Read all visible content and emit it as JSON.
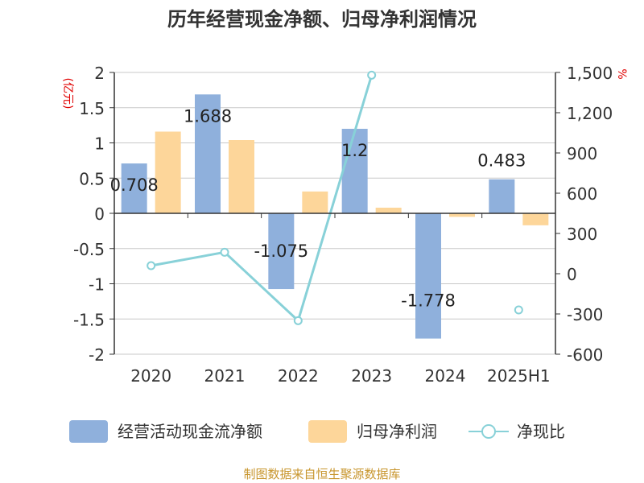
{
  "chart_data": {
    "type": "bar",
    "title": "历年经营现金净额、归母净利润情况",
    "categories": [
      "2020",
      "2021",
      "2022",
      "2023",
      "2024",
      "2025H1"
    ],
    "left_axis": {
      "label": "(亿元)",
      "range": [
        -2,
        2
      ],
      "ticks": [
        "2",
        "1.5",
        "1",
        "0.5",
        "0",
        "-0.5",
        "-1",
        "-1.5",
        "-2"
      ]
    },
    "right_axis": {
      "label": "%",
      "range": [
        -600,
        1500
      ],
      "ticks": [
        "1,500",
        "1,200",
        "900",
        "600",
        "300",
        "0",
        "-300",
        "-600"
      ]
    },
    "series": [
      {
        "name": "经营活动现金流净额",
        "kind": "bar",
        "color": "#8fb0dc",
        "values": [
          0.708,
          1.688,
          -1.075,
          1.2,
          -1.778,
          0.483
        ],
        "labels": [
          "0.708",
          "1.688",
          "-1.075",
          "1.2",
          "-1.778",
          "0.483"
        ]
      },
      {
        "name": "归母净利润",
        "kind": "bar",
        "color": "#fdd69a",
        "values": [
          1.16,
          1.04,
          0.31,
          0.08,
          -0.05,
          -0.17
        ]
      },
      {
        "name": "净现比",
        "kind": "line",
        "color": "#88d1d8",
        "axis": "right",
        "values": [
          60,
          160,
          -350,
          1480,
          null,
          -270
        ]
      }
    ],
    "grid": true,
    "legend": "bottom",
    "source": "制图数据来自恒生聚源数据库"
  }
}
